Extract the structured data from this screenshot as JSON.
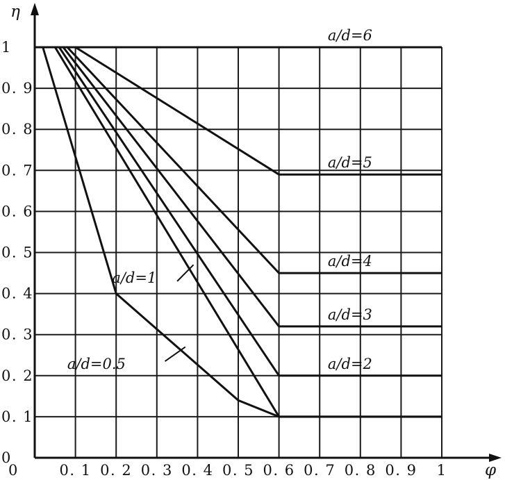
{
  "chart_data": {
    "type": "line",
    "title": "",
    "xlabel": "φ",
    "ylabel": "η",
    "xlim": [
      0,
      1
    ],
    "ylim": [
      0,
      1
    ],
    "grid": true,
    "legend": "none",
    "x_ticks": [
      {
        "value": 0,
        "label": "0"
      },
      {
        "value": 0.1,
        "label": "0. 1"
      },
      {
        "value": 0.2,
        "label": "0. 2"
      },
      {
        "value": 0.3,
        "label": "0. 3"
      },
      {
        "value": 0.4,
        "label": "0. 4"
      },
      {
        "value": 0.5,
        "label": "0. 5"
      },
      {
        "value": 0.6,
        "label": "0. 6"
      },
      {
        "value": 0.7,
        "label": "0. 7"
      },
      {
        "value": 0.8,
        "label": "0. 8"
      },
      {
        "value": 0.9,
        "label": "0. 9"
      },
      {
        "value": 1,
        "label": "1"
      }
    ],
    "y_ticks": [
      {
        "value": 0,
        "label": "0"
      },
      {
        "value": 0.1,
        "label": "0. 1"
      },
      {
        "value": 0.2,
        "label": "0. 2"
      },
      {
        "value": 0.3,
        "label": "0. 3"
      },
      {
        "value": 0.4,
        "label": "0. 4"
      },
      {
        "value": 0.5,
        "label": "0. 5"
      },
      {
        "value": 0.6,
        "label": "0. 6"
      },
      {
        "value": 0.7,
        "label": "0. 7"
      },
      {
        "value": 0.8,
        "label": "0. 8"
      },
      {
        "value": 0.9,
        "label": "0. 9"
      },
      {
        "value": 1,
        "label": "1"
      }
    ],
    "series": [
      {
        "name": "a/d=0.5",
        "x": [
          0,
          0.02,
          0.2,
          0.5,
          0.6,
          1.0
        ],
        "y": [
          1.0,
          1.0,
          0.4,
          0.14,
          0.1,
          0.1
        ]
      },
      {
        "name": "a/d=1",
        "x": [
          0,
          0.05,
          0.6,
          1.0
        ],
        "y": [
          1.0,
          1.0,
          0.1,
          0.1
        ]
      },
      {
        "name": "a/d=2",
        "x": [
          0,
          0.06,
          0.6,
          1.0
        ],
        "y": [
          1.0,
          1.0,
          0.2,
          0.2
        ]
      },
      {
        "name": "a/d=3",
        "x": [
          0,
          0.07,
          0.6,
          1.0
        ],
        "y": [
          1.0,
          1.0,
          0.32,
          0.32
        ]
      },
      {
        "name": "a/d=4",
        "x": [
          0,
          0.08,
          0.6,
          1.0
        ],
        "y": [
          1.0,
          1.0,
          0.45,
          0.45
        ]
      },
      {
        "name": "a/d=5",
        "x": [
          0,
          0.1,
          0.6,
          1.0
        ],
        "y": [
          1.0,
          1.0,
          0.69,
          0.69
        ]
      },
      {
        "name": "a/d=6",
        "x": [
          0,
          1.0
        ],
        "y": [
          1.0,
          1.0
        ]
      }
    ],
    "labels": [
      {
        "text": "a/d=6",
        "at": [
          0.72,
          1.0
        ],
        "placement": "above-line"
      },
      {
        "text": "a/d=5",
        "at": [
          0.72,
          0.69
        ],
        "placement": "above-line"
      },
      {
        "text": "a/d=4",
        "at": [
          0.72,
          0.45
        ],
        "placement": "above-line"
      },
      {
        "text": "a/d=3",
        "at": [
          0.72,
          0.32
        ],
        "placement": "above-line"
      },
      {
        "text": "a/d=2",
        "at": [
          0.72,
          0.2
        ],
        "placement": "above-line"
      },
      {
        "text": "a/d=1",
        "at": [
          0.19,
          0.44
        ],
        "placement": "left-of-curve"
      },
      {
        "text": "a/d=0.5",
        "at": [
          0.08,
          0.23
        ],
        "placement": "left-of-curve"
      }
    ]
  }
}
